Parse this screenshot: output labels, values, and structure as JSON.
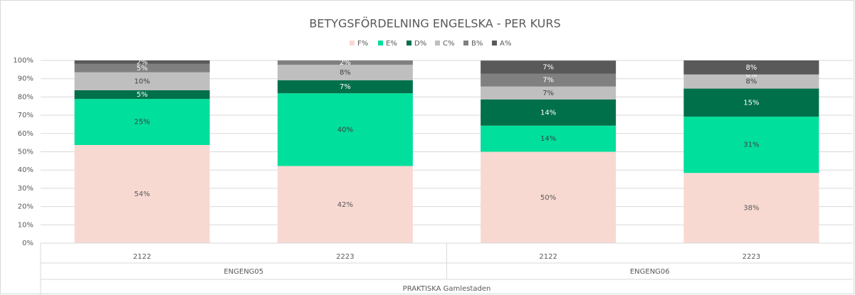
{
  "chart_data": {
    "type": "bar",
    "stacked": true,
    "title": "BETYGSFÖRDELNING ENGELSKA - PER KURS",
    "categories": [
      "2122",
      "2223",
      "2122",
      "2223"
    ],
    "groups": [
      "ENGENG05",
      "ENGENG06"
    ],
    "supergroup": "PRAKTISKA Gamlestaden",
    "series": [
      {
        "name": "F%",
        "color": "#f8d9d2",
        "label_color": "#595959",
        "values": [
          53.7,
          42.2,
          50,
          38.4
        ],
        "value_labels": [
          "54%",
          "42%",
          "50%",
          "38%"
        ]
      },
      {
        "name": "E%",
        "color": "#00df9b",
        "label_color": "#404040",
        "values": [
          25.2,
          39.8,
          14.3,
          30.8
        ],
        "value_labels": [
          "25%",
          "40%",
          "14%",
          "31%"
        ]
      },
      {
        "name": "D%",
        "color": "#00704a",
        "label_color": "#ffffff",
        "values": [
          4.8,
          7.2,
          14.3,
          15.4
        ],
        "value_labels": [
          "5%",
          "7%",
          "14%",
          "15%"
        ]
      },
      {
        "name": "C%",
        "color": "#bfbfbf",
        "label_color": "#404040",
        "values": [
          9.8,
          8.4,
          7.1,
          7.7
        ],
        "value_labels": [
          "10%",
          "8%",
          "7%",
          "8%"
        ]
      },
      {
        "name": "B%",
        "color": "#808080",
        "label_color": "#ffffff",
        "values": [
          4.6,
          2.4,
          7.1,
          0
        ],
        "value_labels": [
          "5%",
          "2%",
          "7%",
          "0%"
        ]
      },
      {
        "name": "A%",
        "color": "#595959",
        "label_color": "#ffffff",
        "values": [
          1.9,
          0,
          7.1,
          7.7
        ],
        "value_labels": [
          "2%",
          null,
          "7%",
          "8%"
        ]
      }
    ],
    "ylim": [
      0,
      100
    ],
    "yticks": [
      {
        "value": 0,
        "label": "0%"
      },
      {
        "value": 10,
        "label": "10%"
      },
      {
        "value": 20,
        "label": "20%"
      },
      {
        "value": 30,
        "label": "30%"
      },
      {
        "value": 40,
        "label": "40%"
      },
      {
        "value": 50,
        "label": "50%"
      },
      {
        "value": 60,
        "label": "60%"
      },
      {
        "value": 70,
        "label": "70%"
      },
      {
        "value": 80,
        "label": "80%"
      },
      {
        "value": 90,
        "label": "90%"
      },
      {
        "value": 100,
        "label": "100%"
      }
    ],
    "grid": true,
    "legend": "top"
  }
}
